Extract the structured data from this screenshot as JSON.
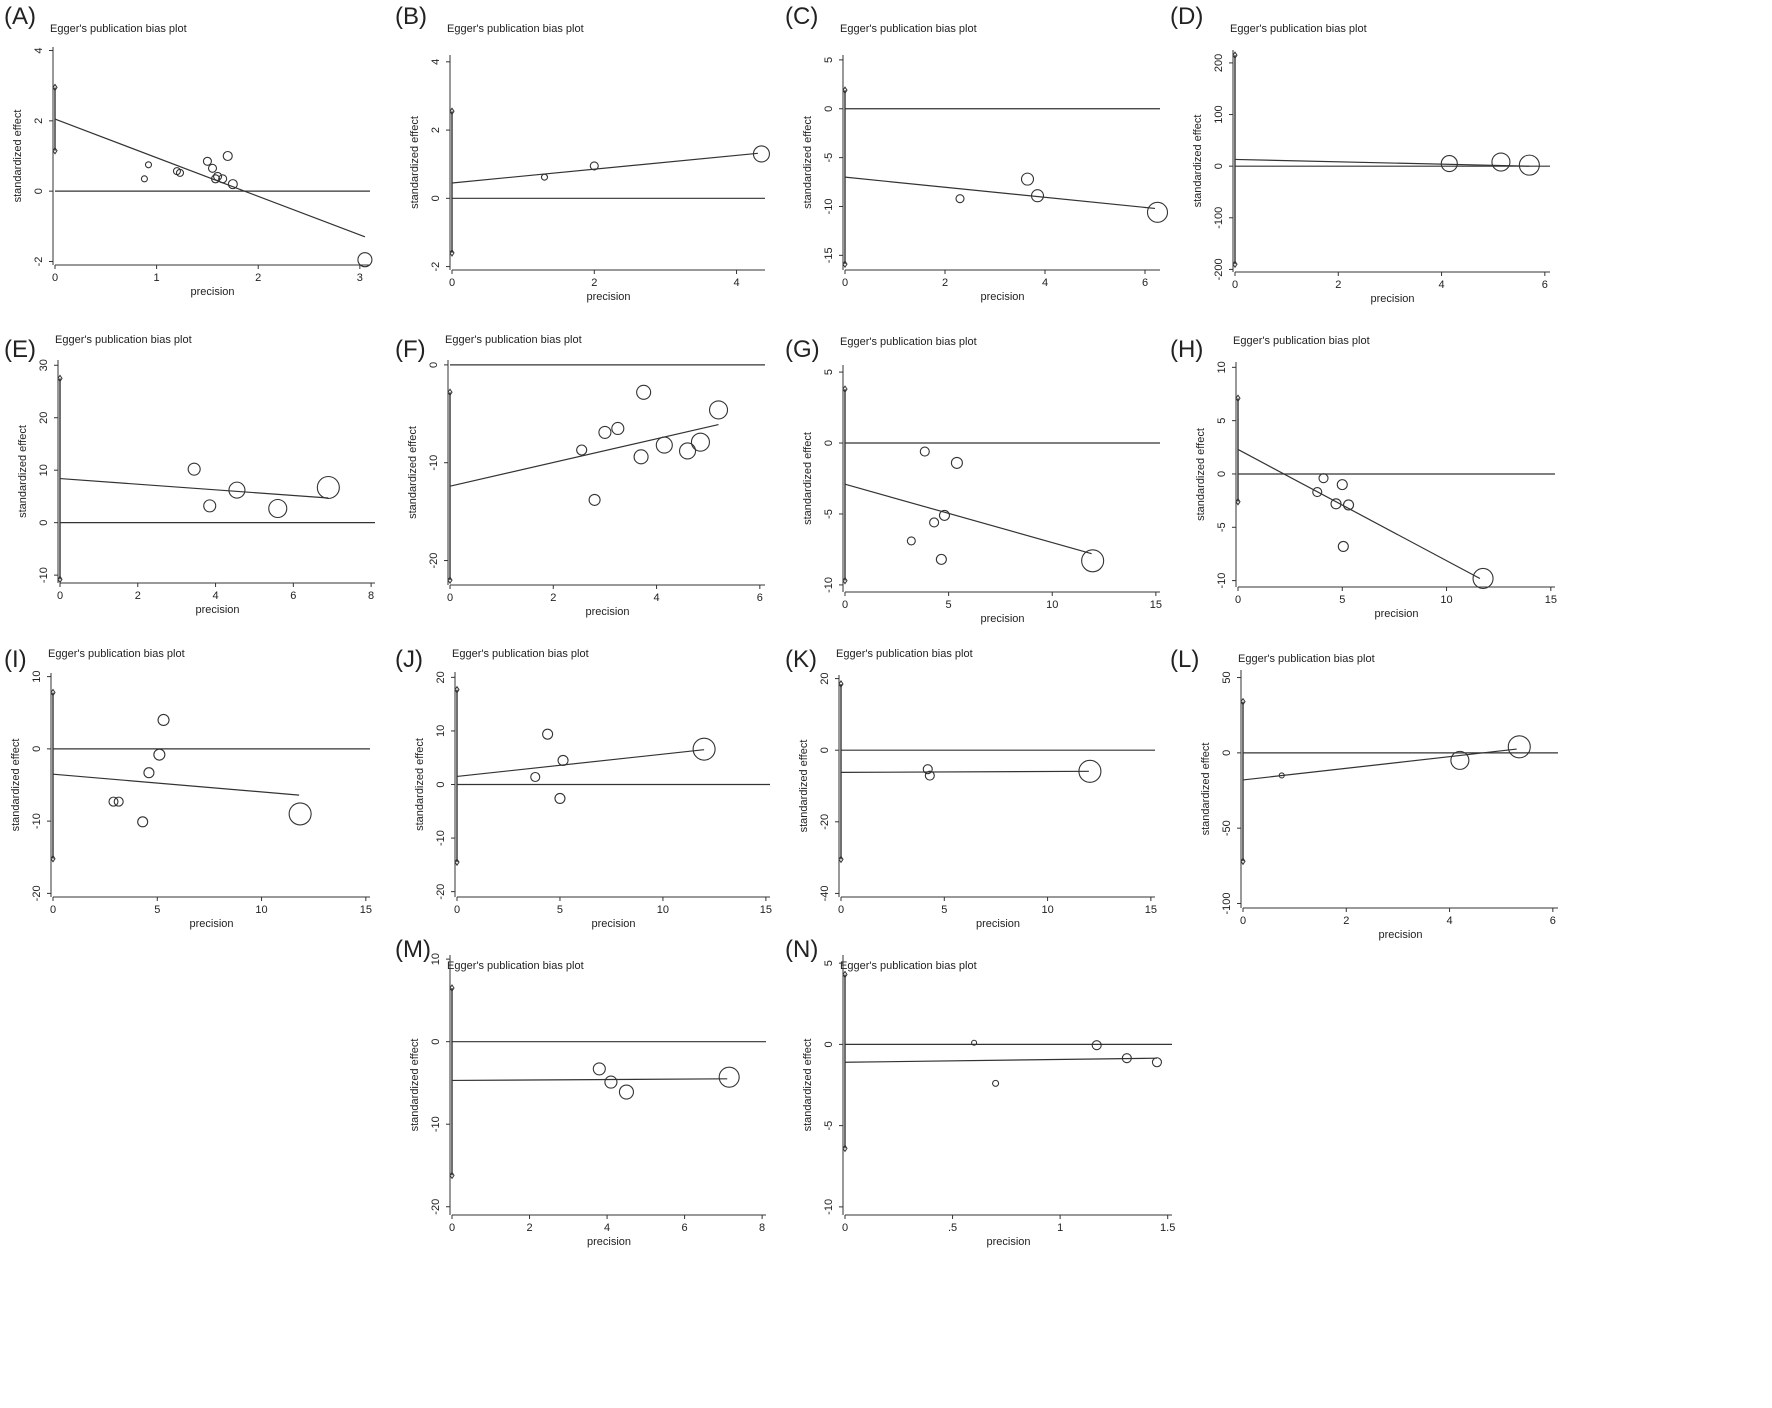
{
  "figure": {
    "background": "#ffffff",
    "line_color": "#333333",
    "marker_color": "#333333"
  },
  "chart_data": [
    {
      "panel": "(A)",
      "type": "scatter",
      "title": "Egger's publication bias plot",
      "xlabel": "precision",
      "ylabel": "standardized effect",
      "xlim": [
        0,
        3.1
      ],
      "ylim": [
        -2.1,
        4.1
      ],
      "xticks": [
        {
          "v": 0,
          "t": "0"
        },
        {
          "v": 1,
          "t": "1"
        },
        {
          "v": 2,
          "t": "2"
        },
        {
          "v": 3,
          "t": "3"
        }
      ],
      "yticks": [
        {
          "v": -2,
          "t": "-2"
        },
        {
          "v": 0,
          "t": "0"
        },
        {
          "v": 2,
          "t": "2"
        },
        {
          "v": 4,
          "t": "4"
        }
      ],
      "points": [
        [
          0.88,
          0.35,
          3
        ],
        [
          0.92,
          0.75,
          3
        ],
        [
          1.2,
          0.57,
          3.5
        ],
        [
          1.23,
          0.52,
          3.5
        ],
        [
          1.5,
          0.85,
          4
        ],
        [
          1.55,
          0.65,
          4
        ],
        [
          1.58,
          0.35,
          4
        ],
        [
          1.6,
          0.42,
          4
        ],
        [
          1.65,
          0.35,
          4
        ],
        [
          1.7,
          1.0,
          4.5
        ],
        [
          1.75,
          0.2,
          4.5
        ],
        [
          3.05,
          -1.95,
          7
        ]
      ],
      "ci": [
        0,
        2.95,
        1.15
      ],
      "fit": [
        [
          0,
          2.05
        ],
        [
          3.05,
          -1.3
        ]
      ]
    },
    {
      "panel": "(B)",
      "type": "scatter",
      "title": "Egger's publication bias plot",
      "xlabel": "precision",
      "ylabel": "standardized effect",
      "xlim": [
        0,
        4.4
      ],
      "ylim": [
        -2.1,
        4.2
      ],
      "xticks": [
        {
          "v": 0,
          "t": "0"
        },
        {
          "v": 2,
          "t": "2"
        },
        {
          "v": 4,
          "t": "4"
        }
      ],
      "yticks": [
        {
          "v": -2,
          "t": "-2"
        },
        {
          "v": 0,
          "t": "0"
        },
        {
          "v": 2,
          "t": "2"
        },
        {
          "v": 4,
          "t": "4"
        }
      ],
      "points": [
        [
          1.3,
          0.62,
          3
        ],
        [
          2.0,
          0.95,
          4
        ],
        [
          4.35,
          1.3,
          8
        ]
      ],
      "ci": [
        0,
        2.55,
        -1.6
      ],
      "fit": [
        [
          0,
          0.45
        ],
        [
          4.3,
          1.32
        ]
      ]
    },
    {
      "panel": "(C)",
      "type": "scatter",
      "title": "Egger's publication bias plot",
      "xlabel": "precision",
      "ylabel": "standardized effect",
      "xlim": [
        0,
        6.3
      ],
      "ylim": [
        -16.5,
        5.5
      ],
      "xticks": [
        {
          "v": 0,
          "t": "0"
        },
        {
          "v": 2,
          "t": "2"
        },
        {
          "v": 4,
          "t": "4"
        },
        {
          "v": 6,
          "t": "6"
        }
      ],
      "yticks": [
        {
          "v": -15,
          "t": "-15"
        },
        {
          "v": -10,
          "t": "-10"
        },
        {
          "v": -5,
          "t": "-5"
        },
        {
          "v": 0,
          "t": "0"
        },
        {
          "v": 5,
          "t": "5"
        }
      ],
      "points": [
        [
          2.3,
          -9.2,
          4
        ],
        [
          3.65,
          -7.2,
          6
        ],
        [
          3.85,
          -8.9,
          6
        ],
        [
          6.25,
          -10.6,
          10
        ]
      ],
      "ci": [
        0,
        1.9,
        -15.9
      ],
      "fit": [
        [
          0,
          -7.0
        ],
        [
          6.2,
          -10.2
        ]
      ]
    },
    {
      "panel": "(D)",
      "type": "scatter",
      "title": "Egger's publication bias plot",
      "xlabel": "precision",
      "ylabel": "standardized effect",
      "xlim": [
        0,
        6.1
      ],
      "ylim": [
        -205,
        225
      ],
      "xticks": [
        {
          "v": 0,
          "t": "0"
        },
        {
          "v": 2,
          "t": "2"
        },
        {
          "v": 4,
          "t": "4"
        },
        {
          "v": 6,
          "t": "6"
        }
      ],
      "yticks": [
        {
          "v": -200,
          "t": "-200"
        },
        {
          "v": -100,
          "t": "-100"
        },
        {
          "v": 0,
          "t": "0"
        },
        {
          "v": 100,
          "t": "100"
        },
        {
          "v": 200,
          "t": "200"
        }
      ],
      "points": [
        [
          4.15,
          5,
          8
        ],
        [
          5.15,
          8,
          9
        ],
        [
          5.7,
          2,
          10
        ]
      ],
      "ci": [
        0,
        215,
        -190
      ],
      "fit": [
        [
          0,
          13
        ],
        [
          5.7,
          0
        ]
      ]
    },
    {
      "panel": "(E)",
      "type": "scatter",
      "title": "Egger's publication bias plot",
      "xlabel": "precision",
      "ylabel": "standardized effect",
      "xlim": [
        0,
        8.1
      ],
      "ylim": [
        -11.5,
        31
      ],
      "xticks": [
        {
          "v": 0,
          "t": "0"
        },
        {
          "v": 2,
          "t": "2"
        },
        {
          "v": 4,
          "t": "4"
        },
        {
          "v": 6,
          "t": "6"
        },
        {
          "v": 8,
          "t": "8"
        }
      ],
      "yticks": [
        {
          "v": -10,
          "t": "-10"
        },
        {
          "v": 0,
          "t": "0"
        },
        {
          "v": 10,
          "t": "10"
        },
        {
          "v": 20,
          "t": "20"
        },
        {
          "v": 30,
          "t": "30"
        }
      ],
      "points": [
        [
          3.45,
          10.2,
          6
        ],
        [
          3.85,
          3.2,
          6
        ],
        [
          4.55,
          6.2,
          8
        ],
        [
          5.6,
          2.7,
          9
        ],
        [
          6.9,
          6.7,
          11
        ]
      ],
      "ci": [
        0,
        27.5,
        -10.8
      ],
      "fit": [
        [
          0,
          8.4
        ],
        [
          6.9,
          4.7
        ]
      ]
    },
    {
      "panel": "(F)",
      "type": "scatter",
      "title": "Egger's publication bias plot",
      "xlabel": "precision",
      "ylabel": "standardized effect",
      "xlim": [
        0,
        6.1
      ],
      "ylim": [
        -22.5,
        0.5
      ],
      "xticks": [
        {
          "v": 0,
          "t": "0"
        },
        {
          "v": 2,
          "t": "2"
        },
        {
          "v": 4,
          "t": "4"
        },
        {
          "v": 6,
          "t": "6"
        }
      ],
      "yticks": [
        {
          "v": -20,
          "t": "-20"
        },
        {
          "v": -10,
          "t": "-10"
        },
        {
          "v": 0,
          "t": "0"
        }
      ],
      "points": [
        [
          2.55,
          -8.7,
          5
        ],
        [
          2.8,
          -13.8,
          5.5
        ],
        [
          3.0,
          -6.9,
          6
        ],
        [
          3.25,
          -6.5,
          6
        ],
        [
          3.7,
          -9.4,
          7
        ],
        [
          3.75,
          -2.8,
          7
        ],
        [
          4.15,
          -8.2,
          8
        ],
        [
          4.6,
          -8.8,
          8
        ],
        [
          4.85,
          -7.9,
          9
        ],
        [
          5.2,
          -4.6,
          9
        ]
      ],
      "ci": [
        0,
        -2.8,
        -22
      ],
      "fit": [
        [
          0,
          -12.4
        ],
        [
          5.2,
          -6.1
        ]
      ]
    },
    {
      "panel": "(G)",
      "type": "scatter",
      "title": "Egger's publication bias plot",
      "xlabel": "precision",
      "ylabel": "standardized effect",
      "xlim": [
        0,
        15.2
      ],
      "ylim": [
        -10.5,
        5.5
      ],
      "xticks": [
        {
          "v": 0,
          "t": "0"
        },
        {
          "v": 5,
          "t": "5"
        },
        {
          "v": 10,
          "t": "10"
        },
        {
          "v": 15,
          "t": "15"
        }
      ],
      "yticks": [
        {
          "v": -10,
          "t": "-10"
        },
        {
          "v": -5,
          "t": "-5"
        },
        {
          "v": 0,
          "t": "0"
        },
        {
          "v": 5,
          "t": "5"
        }
      ],
      "points": [
        [
          3.2,
          -6.9,
          4
        ],
        [
          3.85,
          -0.6,
          4.5
        ],
        [
          4.3,
          -5.6,
          4.5
        ],
        [
          4.65,
          -8.2,
          5
        ],
        [
          4.8,
          -5.1,
          5
        ],
        [
          5.4,
          -1.4,
          5.5
        ],
        [
          11.95,
          -8.3,
          11
        ]
      ],
      "ci": [
        0,
        3.8,
        -9.7
      ],
      "fit": [
        [
          0,
          -2.9
        ],
        [
          11.9,
          -7.8
        ]
      ]
    },
    {
      "panel": "(H)",
      "type": "scatter",
      "title": "Egger's publication bias plot",
      "xlabel": "precision",
      "ylabel": "standardized effect",
      "xlim": [
        0,
        15.2
      ],
      "ylim": [
        -10.6,
        10.5
      ],
      "xticks": [
        {
          "v": 0,
          "t": "0"
        },
        {
          "v": 5,
          "t": "5"
        },
        {
          "v": 10,
          "t": "10"
        },
        {
          "v": 15,
          "t": "15"
        }
      ],
      "yticks": [
        {
          "v": -10,
          "t": "-10"
        },
        {
          "v": -5,
          "t": "-5"
        },
        {
          "v": 0,
          "t": "0"
        },
        {
          "v": 5,
          "t": "5"
        },
        {
          "v": 10,
          "t": "10"
        }
      ],
      "points": [
        [
          3.8,
          -1.7,
          4.5
        ],
        [
          4.1,
          -0.4,
          4.5
        ],
        [
          4.7,
          -2.8,
          5
        ],
        [
          5.0,
          -1.0,
          5
        ],
        [
          5.05,
          -6.8,
          5
        ],
        [
          5.3,
          -2.9,
          5
        ],
        [
          11.75,
          -9.8,
          10
        ]
      ],
      "ci": [
        0,
        7.1,
        -2.6
      ],
      "fit": [
        [
          0,
          2.3
        ],
        [
          11.6,
          -9.8
        ]
      ]
    },
    {
      "panel": "(I)",
      "type": "scatter",
      "title": "Egger's publication bias plot",
      "xlabel": "precision",
      "ylabel": "standardized effect",
      "xlim": [
        0,
        15.2
      ],
      "ylim": [
        -20.5,
        10.5
      ],
      "xticks": [
        {
          "v": 0,
          "t": "0"
        },
        {
          "v": 5,
          "t": "5"
        },
        {
          "v": 10,
          "t": "10"
        },
        {
          "v": 15,
          "t": "15"
        }
      ],
      "yticks": [
        {
          "v": -20,
          "t": "-20"
        },
        {
          "v": -10,
          "t": "-10"
        },
        {
          "v": 0,
          "t": "0"
        },
        {
          "v": 10,
          "t": "10"
        }
      ],
      "points": [
        [
          2.9,
          -7.3,
          4.5
        ],
        [
          3.15,
          -7.3,
          4.5
        ],
        [
          4.3,
          -10.1,
          5
        ],
        [
          4.6,
          -3.3,
          5
        ],
        [
          5.1,
          -0.8,
          5.5
        ],
        [
          5.3,
          4.0,
          5.5
        ],
        [
          11.85,
          -9.0,
          11
        ]
      ],
      "ci": [
        0,
        7.8,
        -15.2
      ],
      "fit": [
        [
          0,
          -3.5
        ],
        [
          11.8,
          -6.4
        ]
      ]
    },
    {
      "panel": "(J)",
      "type": "scatter",
      "title": "Egger's publication bias plot",
      "xlabel": "precision",
      "ylabel": "standardized effect",
      "xlim": [
        0,
        15.2
      ],
      "ylim": [
        -21,
        21
      ],
      "xticks": [
        {
          "v": 0,
          "t": "0"
        },
        {
          "v": 5,
          "t": "5"
        },
        {
          "v": 10,
          "t": "10"
        },
        {
          "v": 15,
          "t": "15"
        }
      ],
      "yticks": [
        {
          "v": -20,
          "t": "-20"
        },
        {
          "v": -10,
          "t": "-10"
        },
        {
          "v": 0,
          "t": "0"
        },
        {
          "v": 10,
          "t": "10"
        },
        {
          "v": 20,
          "t": "20"
        }
      ],
      "points": [
        [
          3.8,
          1.4,
          4.5
        ],
        [
          4.4,
          9.4,
          5
        ],
        [
          5.0,
          -2.6,
          5
        ],
        [
          5.15,
          4.5,
          5
        ],
        [
          12.0,
          6.6,
          11
        ]
      ],
      "ci": [
        0,
        17.7,
        -14.5
      ],
      "fit": [
        [
          0,
          1.5
        ],
        [
          12,
          6.5
        ]
      ]
    },
    {
      "panel": "(K)",
      "type": "scatter",
      "title": "Egger's publication bias plot",
      "xlabel": "precision",
      "ylabel": "standardized effect",
      "xlim": [
        0,
        15.2
      ],
      "ylim": [
        -41,
        21
      ],
      "xticks": [
        {
          "v": 0,
          "t": "0"
        },
        {
          "v": 5,
          "t": "5"
        },
        {
          "v": 10,
          "t": "10"
        },
        {
          "v": 15,
          "t": "15"
        }
      ],
      "yticks": [
        {
          "v": -40,
          "t": "-40"
        },
        {
          "v": -20,
          "t": "-20"
        },
        {
          "v": 0,
          "t": "0"
        },
        {
          "v": 20,
          "t": "20"
        }
      ],
      "points": [
        [
          4.2,
          -5.3,
          4.5
        ],
        [
          4.3,
          -7.1,
          4.5
        ],
        [
          12.05,
          -5.9,
          11
        ]
      ],
      "ci": [
        0,
        18.5,
        -30.5
      ],
      "fit": [
        [
          0,
          -6.2
        ],
        [
          12,
          -5.9
        ]
      ]
    },
    {
      "panel": "(L)",
      "type": "scatter",
      "title": "Egger's publication bias plot",
      "xlabel": "precision",
      "ylabel": "standardized effect",
      "xlim": [
        0,
        6.1
      ],
      "ylim": [
        -103,
        55
      ],
      "xticks": [
        {
          "v": 0,
          "t": "0"
        },
        {
          "v": 2,
          "t": "2"
        },
        {
          "v": 4,
          "t": "4"
        },
        {
          "v": 6,
          "t": "6"
        }
      ],
      "yticks": [
        {
          "v": -100,
          "t": "-100"
        },
        {
          "v": -50,
          "t": "-50"
        },
        {
          "v": 0,
          "t": "0"
        },
        {
          "v": 50,
          "t": "50"
        }
      ],
      "points": [
        [
          0.75,
          -15,
          2.5
        ],
        [
          4.2,
          -5,
          9
        ],
        [
          5.35,
          4,
          11
        ]
      ],
      "ci": [
        0,
        34,
        -72
      ],
      "fit": [
        [
          0,
          -18
        ],
        [
          5.3,
          2.5
        ]
      ]
    },
    {
      "panel": "(M)",
      "type": "scatter",
      "title": "Egger's publication bias plot",
      "xlabel": "precision",
      "ylabel": "standardized effect",
      "xlim": [
        0,
        8.1
      ],
      "ylim": [
        -21,
        10.5
      ],
      "xticks": [
        {
          "v": 0,
          "t": "0"
        },
        {
          "v": 2,
          "t": "2"
        },
        {
          "v": 4,
          "t": "4"
        },
        {
          "v": 6,
          "t": "6"
        },
        {
          "v": 8,
          "t": "8"
        }
      ],
      "yticks": [
        {
          "v": -20,
          "t": "-20"
        },
        {
          "v": -10,
          "t": "-10"
        },
        {
          "v": 0,
          "t": "0"
        },
        {
          "v": 10,
          "t": "10"
        }
      ],
      "points": [
        [
          3.8,
          -3.3,
          6
        ],
        [
          4.1,
          -4.9,
          6
        ],
        [
          4.5,
          -6.1,
          7
        ],
        [
          7.15,
          -4.3,
          10
        ]
      ],
      "ci": [
        0,
        6.5,
        -16.2
      ],
      "fit": [
        [
          0,
          -4.7
        ],
        [
          7.1,
          -4.5
        ]
      ]
    },
    {
      "panel": "(N)",
      "type": "scatter",
      "title": "Egger's publication bias plot",
      "xlabel": "precision",
      "ylabel": "standardized effect",
      "xlim": [
        0,
        1.52
      ],
      "ylim": [
        -10.5,
        5.5
      ],
      "xticks": [
        {
          "v": 0,
          "t": "0"
        },
        {
          "v": 0.5,
          "t": ".5"
        },
        {
          "v": 1,
          "t": "1"
        },
        {
          "v": 1.5,
          "t": "1.5"
        }
      ],
      "yticks": [
        {
          "v": -10,
          "t": "-10"
        },
        {
          "v": -5,
          "t": "-5"
        },
        {
          "v": 0,
          "t": "0"
        },
        {
          "v": 5,
          "t": "5"
        }
      ],
      "points": [
        [
          0.6,
          0.1,
          2.5
        ],
        [
          0.7,
          -2.4,
          3
        ],
        [
          1.17,
          -0.05,
          4.5
        ],
        [
          1.31,
          -0.85,
          4.5
        ],
        [
          1.45,
          -1.1,
          4.5
        ]
      ],
      "ci": [
        0,
        4.3,
        -6.4
      ],
      "fit": [
        [
          0,
          -1.1
        ],
        [
          1.45,
          -0.85
        ]
      ]
    }
  ]
}
